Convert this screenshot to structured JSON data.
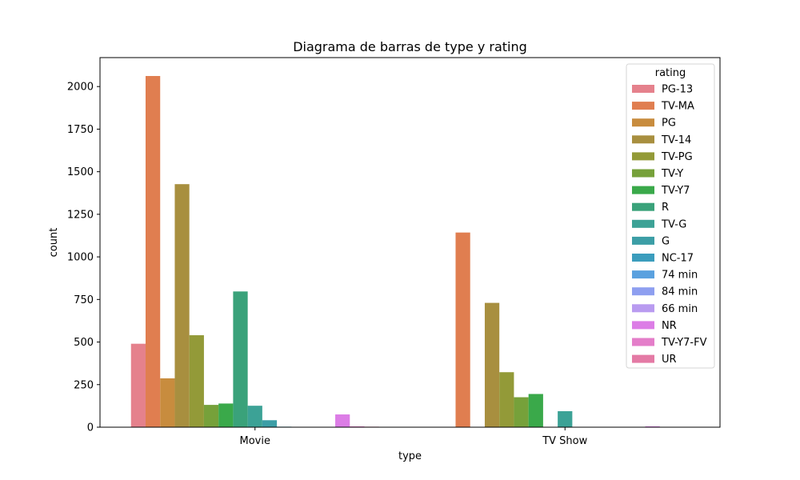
{
  "chart_data": {
    "type": "bar",
    "title": "Diagrama de barras de type y rating",
    "xlabel": "type",
    "ylabel": "count",
    "ylim": [
      0,
      2170
    ],
    "yticks": [
      0,
      250,
      500,
      750,
      1000,
      1250,
      1500,
      1750,
      2000
    ],
    "categories": [
      "Movie",
      "TV Show"
    ],
    "legend": {
      "title": "rating",
      "placement": "top-right"
    },
    "series": [
      {
        "name": "PG-13",
        "color": "#e5818c",
        "values": [
          490,
          0
        ]
      },
      {
        "name": "TV-MA",
        "color": "#e07e50",
        "values": [
          2062,
          1143
        ]
      },
      {
        "name": "PG",
        "color": "#c88c3e",
        "values": [
          287,
          0
        ]
      },
      {
        "name": "TV-14",
        "color": "#a88f3f",
        "values": [
          1427,
          730
        ]
      },
      {
        "name": "TV-PG",
        "color": "#939a38",
        "values": [
          540,
          323
        ]
      },
      {
        "name": "TV-Y",
        "color": "#76a13a",
        "values": [
          131,
          176
        ]
      },
      {
        "name": "TV-Y7",
        "color": "#3aa94a",
        "values": [
          139,
          195
        ]
      },
      {
        "name": "R",
        "color": "#3aa27a",
        "values": [
          797,
          2
        ]
      },
      {
        "name": "TV-G",
        "color": "#3ca296",
        "values": [
          126,
          94
        ]
      },
      {
        "name": "G",
        "color": "#3c9ea6",
        "values": [
          41,
          0
        ]
      },
      {
        "name": "NC-17",
        "color": "#3b9dbd",
        "values": [
          3,
          0
        ]
      },
      {
        "name": "74 min",
        "color": "#5aa1df",
        "values": [
          1,
          0
        ]
      },
      {
        "name": "84 min",
        "color": "#8e9ff0",
        "values": [
          1,
          0
        ]
      },
      {
        "name": "66 min",
        "color": "#b99bf0",
        "values": [
          1,
          0
        ]
      },
      {
        "name": "NR",
        "color": "#dc7de6",
        "values": [
          75,
          5
        ]
      },
      {
        "name": "TV-Y7-FV",
        "color": "#e47ec9",
        "values": [
          5,
          1
        ]
      },
      {
        "name": "UR",
        "color": "#e47aa5",
        "values": [
          3,
          0
        ]
      }
    ]
  }
}
